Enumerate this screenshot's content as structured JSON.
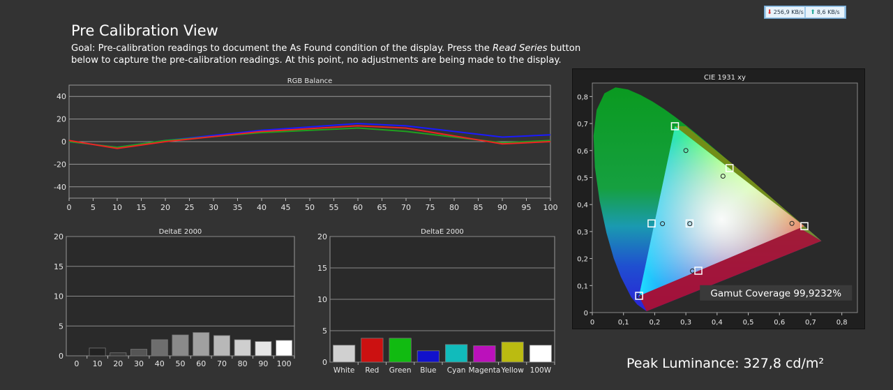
{
  "netmeter": {
    "download": "256,9 KB/s",
    "upload": "8,6 KB/s"
  },
  "page": {
    "title": "Pre Calibration View",
    "goal_prefix": "Goal: Pre-calibration readings to document the As Found condition of the display. Press the ",
    "goal_button": "Read Series",
    "goal_suffix": " button below to capture the pre-calibration readings. At this point, no adjustments are being made to the display.",
    "peak_luminance": "Peak Luminance: 327,8 cd/m²",
    "gamut_coverage": "Gamut Coverage 99,9232%"
  },
  "chart_data": [
    {
      "type": "line",
      "title": "RGB Balance",
      "x": [
        0,
        10,
        20,
        40,
        60,
        70,
        90,
        100
      ],
      "xticks": [
        0,
        5,
        10,
        15,
        20,
        25,
        30,
        35,
        40,
        45,
        50,
        55,
        60,
        65,
        70,
        75,
        80,
        85,
        90,
        95,
        100
      ],
      "yticks": [
        40,
        20,
        0,
        -20,
        -40
      ],
      "ylim": [
        -50,
        50
      ],
      "xlim": [
        0,
        100
      ],
      "grid": true,
      "series": [
        {
          "color": "#1a1aff",
          "values": [
            0,
            -5,
            1,
            10,
            16,
            14,
            4,
            6
          ]
        },
        {
          "color": "#1fa01f",
          "values": [
            0,
            -5,
            1,
            8,
            12,
            9,
            -1,
            1
          ]
        },
        {
          "color": "#ee2222",
          "values": [
            1,
            -6,
            0,
            9,
            14,
            12,
            -2,
            0
          ]
        }
      ]
    },
    {
      "type": "bar",
      "title": "DeltaE 2000",
      "categories": [
        "0",
        "10",
        "20",
        "30",
        "40",
        "50",
        "60",
        "70",
        "80",
        "90",
        "100"
      ],
      "values": [
        0,
        1.3,
        0.5,
        1.1,
        2.7,
        3.5,
        3.9,
        3.4,
        2.7,
        2.4,
        2.6
      ],
      "colors": [
        "#000000",
        "#222222",
        "#3a3a3a",
        "#555555",
        "#6e6e6e",
        "#8a8a8a",
        "#a0a0a0",
        "#b8b8b8",
        "#cfcfcf",
        "#e6e6e6",
        "#ffffff"
      ],
      "ylim": [
        0,
        20
      ],
      "yticks": [
        20,
        15,
        10,
        5,
        0
      ],
      "grid": true
    },
    {
      "type": "bar",
      "title": "DeltaE 2000",
      "categories": [
        "White",
        "Red",
        "Green",
        "Blue",
        "Cyan",
        "Magenta",
        "Yellow",
        "100W"
      ],
      "values": [
        2.7,
        3.8,
        3.8,
        1.8,
        2.8,
        2.6,
        3.2,
        2.7
      ],
      "colors": [
        "#d0d0d0",
        "#cc1111",
        "#11bb11",
        "#1111cc",
        "#11bbbb",
        "#bb11bb",
        "#bbbb11",
        "#ffffff"
      ],
      "ylim": [
        0,
        20
      ],
      "yticks": [
        20,
        15,
        10,
        5,
        0
      ],
      "grid": true
    },
    {
      "type": "scatter",
      "title": "CIE 1931 xy",
      "xticks": [
        "0",
        "0,1",
        "0,2",
        "0,3",
        "0,4",
        "0,5",
        "0,6",
        "0,7",
        "0,8"
      ],
      "yticks": [
        "0,8",
        "0,7",
        "0,6",
        "0,5",
        "0,4",
        "0,3",
        "0,2",
        "0,1",
        "0"
      ],
      "xlim": [
        0,
        0.85
      ],
      "ylim": [
        0,
        0.85
      ],
      "targets": [
        {
          "name": "Red",
          "x": 0.64,
          "y": 0.33
        },
        {
          "name": "Green",
          "x": 0.3,
          "y": 0.6
        },
        {
          "name": "Blue",
          "x": 0.15,
          "y": 0.06
        },
        {
          "name": "White",
          "x": 0.3127,
          "y": 0.329
        },
        {
          "name": "Cyan",
          "x": 0.225,
          "y": 0.329
        },
        {
          "name": "Magenta",
          "x": 0.321,
          "y": 0.154
        },
        {
          "name": "Yellow",
          "x": 0.419,
          "y": 0.505
        }
      ],
      "measured": [
        {
          "name": "Red",
          "x": 0.68,
          "y": 0.32
        },
        {
          "name": "Green",
          "x": 0.265,
          "y": 0.69
        },
        {
          "name": "Blue",
          "x": 0.15,
          "y": 0.062
        },
        {
          "name": "White",
          "x": 0.312,
          "y": 0.33
        },
        {
          "name": "Cyan",
          "x": 0.19,
          "y": 0.33
        },
        {
          "name": "Magenta",
          "x": 0.34,
          "y": 0.155
        },
        {
          "name": "Yellow",
          "x": 0.44,
          "y": 0.535
        }
      ]
    }
  ]
}
